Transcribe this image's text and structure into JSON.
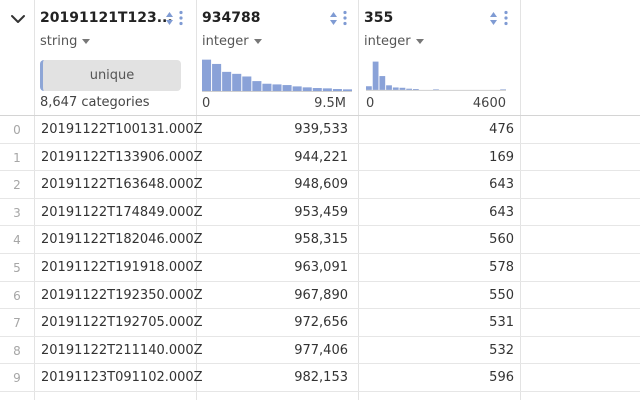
{
  "columns": [
    {
      "title": "20191121T123...",
      "type": "string",
      "summary_label": "unique",
      "summary_count": "8,647 categories"
    },
    {
      "title": "934788",
      "type": "integer",
      "axis_min": "0",
      "axis_max": "9.5M",
      "histogram": [
        0.95,
        0.82,
        0.58,
        0.52,
        0.44,
        0.3,
        0.22,
        0.2,
        0.18,
        0.14,
        0.11,
        0.09,
        0.08,
        0.06,
        0.05
      ]
    },
    {
      "title": "355",
      "type": "integer",
      "axis_min": "0",
      "axis_max": "4600",
      "histogram": [
        0.12,
        0.92,
        0.45,
        0.15,
        0.08,
        0.07,
        0.04,
        0.03,
        0,
        0,
        0.02,
        0,
        0,
        0,
        0,
        0,
        0,
        0,
        0,
        0,
        0.02
      ]
    }
  ],
  "rows": [
    {
      "index": "0",
      "c1": "20191122T100131.000Z",
      "c2": "939,533",
      "c3": "476"
    },
    {
      "index": "1",
      "c1": "20191122T133906.000Z",
      "c2": "944,221",
      "c3": "169"
    },
    {
      "index": "2",
      "c1": "20191122T163648.000Z",
      "c2": "948,609",
      "c3": "643"
    },
    {
      "index": "3",
      "c1": "20191122T174849.000Z",
      "c2": "953,459",
      "c3": "643"
    },
    {
      "index": "4",
      "c1": "20191122T182046.000Z",
      "c2": "958,315",
      "c3": "560"
    },
    {
      "index": "5",
      "c1": "20191122T191918.000Z",
      "c2": "963,091",
      "c3": "578"
    },
    {
      "index": "6",
      "c1": "20191122T192350.000Z",
      "c2": "967,890",
      "c3": "550"
    },
    {
      "index": "7",
      "c1": "20191122T192705.000Z",
      "c2": "972,656",
      "c3": "531"
    },
    {
      "index": "8",
      "c1": "20191122T211140.000Z",
      "c2": "977,406",
      "c3": "532"
    },
    {
      "index": "9",
      "c1": "20191123T091102.000Z",
      "c2": "982,153",
      "c3": "596"
    }
  ],
  "colors": {
    "accent": "#8ea6d6",
    "bar": "#8aa2d8",
    "grid": "#e3e3e3"
  },
  "icons": {
    "collapse": "chevron-down-icon",
    "sort": "sort-arrows-icon",
    "menu": "kebab-menu-icon"
  }
}
